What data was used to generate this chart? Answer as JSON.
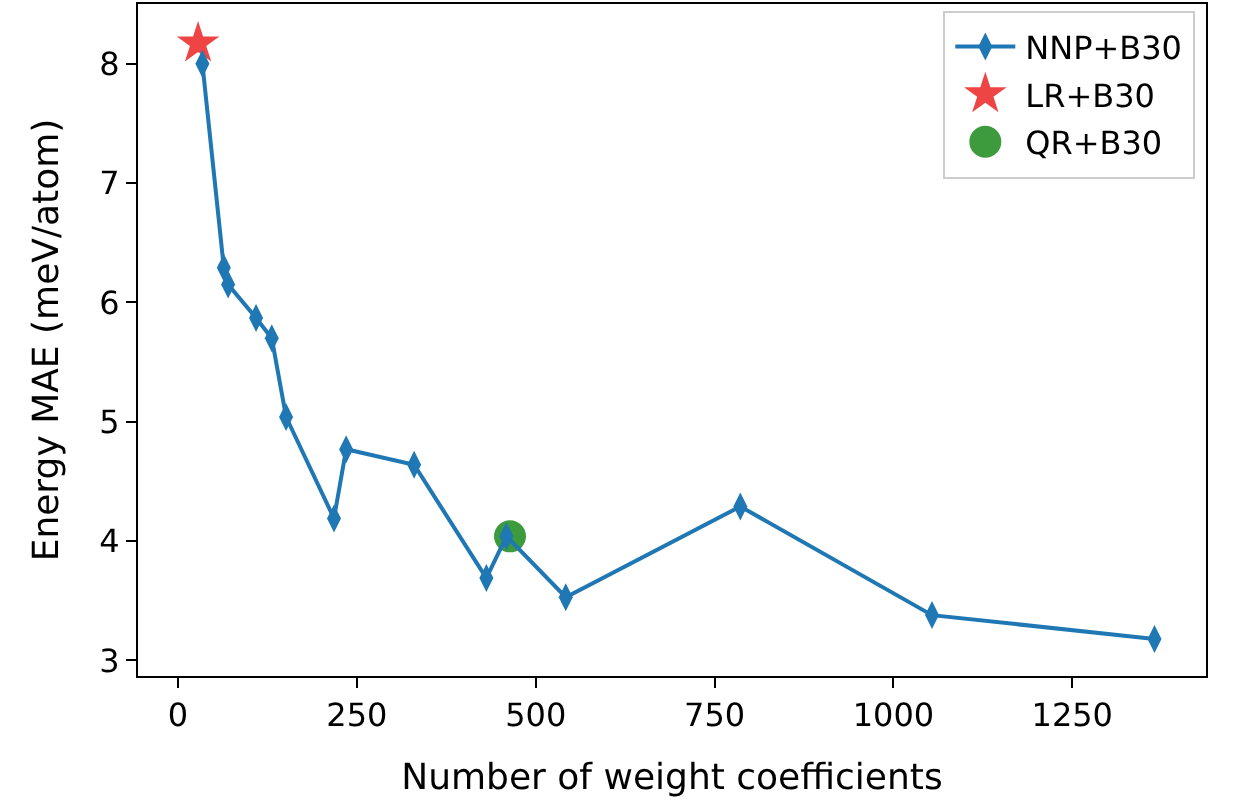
{
  "chart_data": {
    "type": "line",
    "xlabel": "Number of weight coefficients",
    "ylabel": "Energy MAE (meV/atom)",
    "xlim": [
      -56,
      1437
    ],
    "ylim": [
      2.87,
      8.5
    ],
    "xticks": [
      0,
      250,
      500,
      750,
      1000,
      1250
    ],
    "yticks": [
      3,
      4,
      5,
      6,
      7,
      8
    ],
    "legend": "top right",
    "series": [
      {
        "name": "NNP+B30",
        "marker": "diamond",
        "color": "#1f77b4",
        "x": [
          34,
          64,
          70,
          109,
          131,
          151,
          218,
          235,
          330,
          431,
          459,
          542,
          786,
          1054,
          1365
        ],
        "values": [
          8.0,
          6.29,
          6.15,
          5.87,
          5.7,
          5.04,
          4.19,
          4.77,
          4.64,
          3.69,
          4.04,
          3.53,
          4.29,
          3.38,
          3.18
        ]
      },
      {
        "name": "LR+B30",
        "type": "scatter",
        "marker": "star",
        "color": "#ef4444",
        "x": [
          28
        ],
        "values": [
          8.17
        ]
      },
      {
        "name": "QR+B30",
        "type": "scatter",
        "marker": "circle",
        "color": "#3d9a3d",
        "x": [
          464
        ],
        "values": [
          4.04
        ]
      }
    ]
  }
}
